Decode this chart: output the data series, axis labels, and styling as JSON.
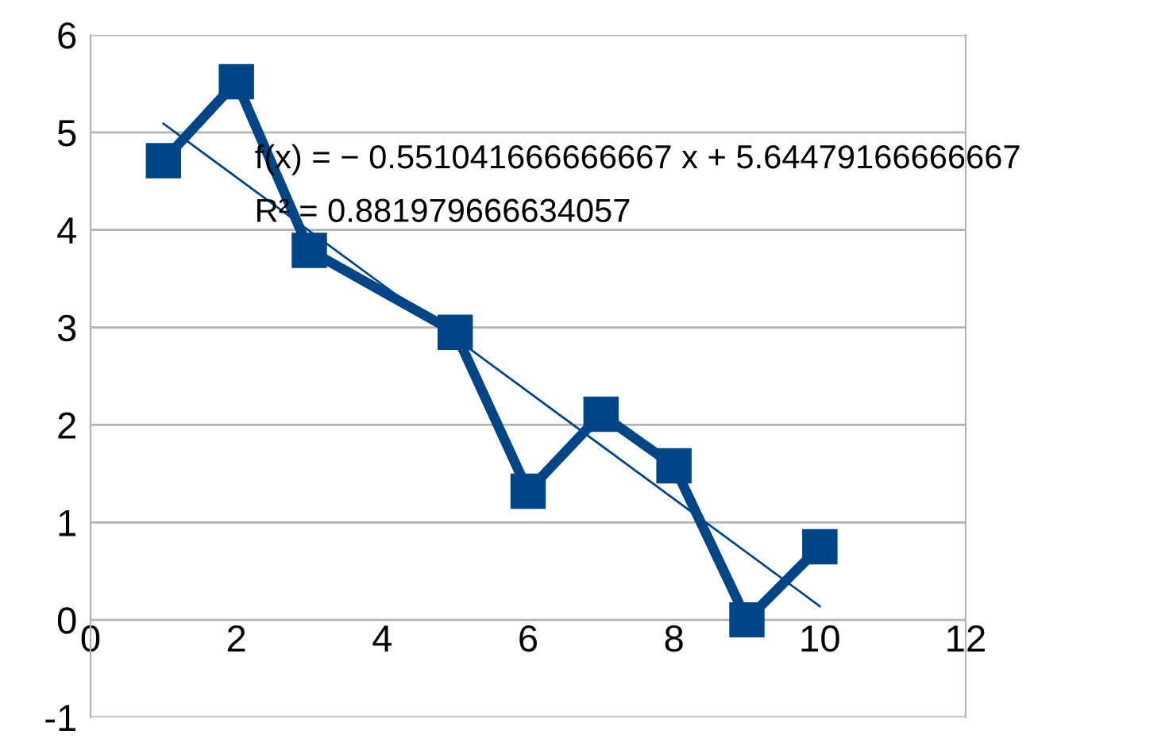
{
  "chart_data": {
    "type": "line",
    "series": [
      {
        "color": "#004586",
        "marker": "square",
        "x": [
          1,
          2,
          3,
          5,
          6,
          7,
          8,
          9,
          10
        ],
        "values": [
          4.71,
          5.52,
          3.79,
          2.95,
          1.32,
          2.11,
          1.58,
          0,
          0.75
        ]
      },
      {
        "color": "#004586",
        "marker": "none",
        "x": [
          1,
          10
        ],
        "values": [
          5.09,
          0.14
        ]
      }
    ],
    "xlim": [
      0,
      12
    ],
    "xticks": [
      0,
      2,
      4,
      6,
      8,
      10,
      12
    ],
    "ylim": [
      -1,
      6
    ],
    "yticks": [
      -1,
      0,
      1,
      2,
      3,
      4,
      5,
      6
    ],
    "grid": "y",
    "annotations": [
      "f(x) = − 0.551041666666667 x + 5.64479166666667",
      "R² = 0.881979666634057"
    ]
  }
}
